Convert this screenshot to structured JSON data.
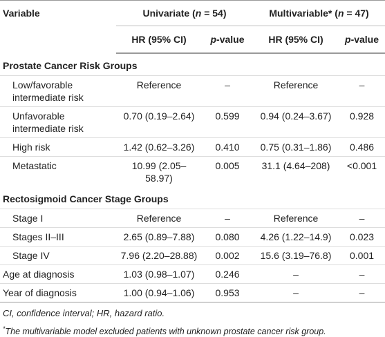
{
  "header": {
    "variable": "Variable",
    "groups": [
      {
        "text": "Univariate (",
        "italic": "n",
        "rest": " = 54)"
      },
      {
        "text": "Multivariable* (",
        "italic": "n",
        "rest": " = 47)"
      }
    ],
    "subheaders": [
      {
        "text": "HR (95% CI)"
      },
      {
        "italic": "p",
        "text": "-value"
      },
      {
        "text": "HR (95% CI)"
      },
      {
        "italic": "p",
        "text": "-value"
      }
    ]
  },
  "rows": [
    {
      "section": "Prostate Cancer Risk Groups"
    },
    {
      "label": "Low/favorable intermediate risk",
      "cells": [
        "Reference",
        "–",
        "Reference",
        "–"
      ]
    },
    {
      "label": "Unfavorable intermediate risk",
      "cells": [
        "0.70 (0.19–2.64)",
        "0.599",
        "0.94 (0.24–3.67)",
        "0.928"
      ]
    },
    {
      "label": "High risk",
      "cells": [
        "1.42 (0.62–3.26)",
        "0.410",
        "0.75 (0.31–1.86)",
        "0.486"
      ]
    },
    {
      "label": "Metastatic",
      "cells": [
        "10.99 (2.05–58.97)",
        "0.005",
        "31.1 (4.64–208)",
        "<0.001"
      ]
    },
    {
      "section": "Rectosigmoid Cancer Stage Groups"
    },
    {
      "label": "Stage I",
      "cells": [
        "Reference",
        "–",
        "Reference",
        "–"
      ]
    },
    {
      "label": "Stages II–III",
      "cells": [
        "2.65 (0.89–7.88)",
        "0.080",
        "4.26 (1.22–14.9)",
        "0.023"
      ]
    },
    {
      "label": "Stage IV",
      "cells": [
        "7.96 (2.20–28.88)",
        "0.002",
        "15.6 (3.19–76.8)",
        "0.001"
      ]
    },
    {
      "label": "Age at diagnosis",
      "cells": [
        "1.03 (0.98–1.07)",
        "0.246",
        "–",
        "–"
      ],
      "flat": true
    },
    {
      "label": "Year of diagnosis",
      "cells": [
        "1.00 (0.94–1.06)",
        "0.953",
        "–",
        "–"
      ],
      "flat": true
    }
  ],
  "footnotes": {
    "abbrev": "CI, confidence interval; HR, hazard ratio.",
    "mark": "*",
    "note": "The multivariable model excluded patients with unknown prostate cancer risk group."
  }
}
